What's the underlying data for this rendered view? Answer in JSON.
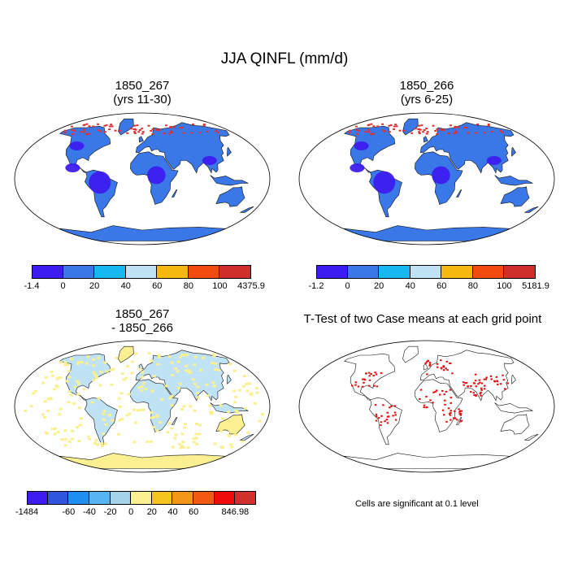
{
  "title": "JJA QINFL (mm/d)",
  "panels": [
    {
      "id": "case1",
      "title": "1850_267\n(yrs 11-30)"
    },
    {
      "id": "case2",
      "title": "1850_266\n(yrs 6-25)"
    },
    {
      "id": "diff",
      "title": "1850_267\n- 1850_266"
    },
    {
      "id": "ttest",
      "title": "T-Test of two Case means at each grid point"
    }
  ],
  "colorbars": [
    {
      "id": "cb1",
      "colors": [
        "#3c1cf0",
        "#3a78e8",
        "#17b7f0",
        "#bfe3f5",
        "#f5b80f",
        "#f34b0f",
        "#cf2e2a"
      ],
      "labels": [
        "-1.4",
        "0",
        "20",
        "40",
        "60",
        "80",
        "100",
        "4375.9"
      ]
    },
    {
      "id": "cb2",
      "colors": [
        "#3c1cf0",
        "#3a78e8",
        "#17b7f0",
        "#bfe3f5",
        "#f5b80f",
        "#f34b0f",
        "#cf2e2a"
      ],
      "labels": [
        "-1.2",
        "0",
        "20",
        "40",
        "60",
        "80",
        "100",
        "5181.9"
      ]
    },
    {
      "id": "cb3",
      "colors": [
        "#3c1cf0",
        "#3156de",
        "#1e8ef0",
        "#59b4f2",
        "#a5d3ea",
        "#fbf091",
        "#f5c41e",
        "#f3961a",
        "#f25a14",
        "#f10c0c",
        "#d0312b"
      ],
      "labels": [
        "-1484",
        "",
        "-60",
        "-40",
        "-20",
        "0",
        "20",
        "40",
        "60",
        "",
        "846.98"
      ]
    }
  ],
  "note": "Cells are significant at 0.1 level",
  "colors": {
    "land_case": "#3a78e8",
    "land_dark": "#3c1cf0",
    "land_diff": "#bfe3f5",
    "land_diff_yellow": "#fbf091",
    "high": "#e03030",
    "sig": "#e01010"
  }
}
